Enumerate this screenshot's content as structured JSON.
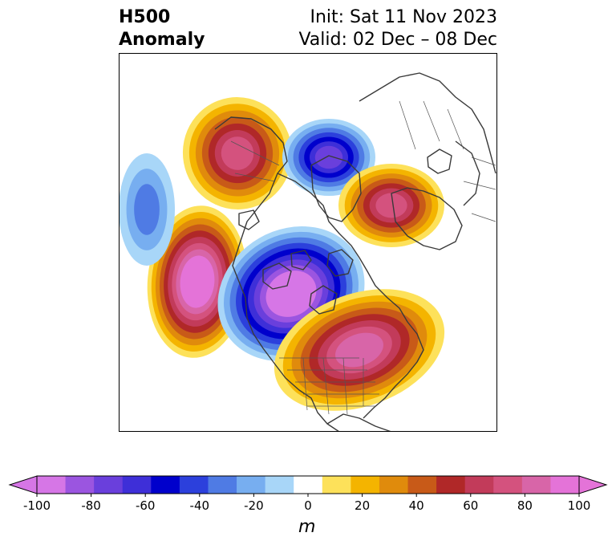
{
  "title": {
    "left_line1": "H500",
    "left_line2": "Anomaly",
    "right_line1": "Init: Sat 11 Nov 2023",
    "right_line2": "Valid: 02 Dec – 08 Dec"
  },
  "colorbar": {
    "unit": "m",
    "ticks": [
      "-100",
      "-80",
      "-60",
      "-40",
      "-20",
      "0",
      "20",
      "40",
      "60",
      "80",
      "100"
    ],
    "levels": [
      -100,
      -90,
      -80,
      -70,
      -60,
      -50,
      -40,
      -30,
      -20,
      -10,
      10,
      20,
      30,
      40,
      50,
      60,
      70,
      80,
      90,
      100
    ],
    "colors": [
      "#d676e6",
      "#9b55e0",
      "#6a3fdc",
      "#3e2fd8",
      "#0000cc",
      "#2c40dc",
      "#4f7be4",
      "#77aef0",
      "#a8d6f8",
      "#ffffff",
      "#fde15a",
      "#f4b400",
      "#e08b0c",
      "#c85a18",
      "#b02828",
      "#c23b5a",
      "#d4527e",
      "#d865a8",
      "#e473d8"
    ]
  },
  "map": {
    "anomalies": [
      {
        "name": "alaska-ridge",
        "value": 70
      },
      {
        "name": "pacific-ridge",
        "value": 100
      },
      {
        "name": "arctic-trough",
        "value": -100
      },
      {
        "name": "hudson-trough",
        "value": -70
      },
      {
        "name": "eurasia-ridge",
        "value": 70
      },
      {
        "name": "atlantic-ridge",
        "value": 80
      },
      {
        "name": "east-pacific-low",
        "value": -30
      }
    ]
  }
}
